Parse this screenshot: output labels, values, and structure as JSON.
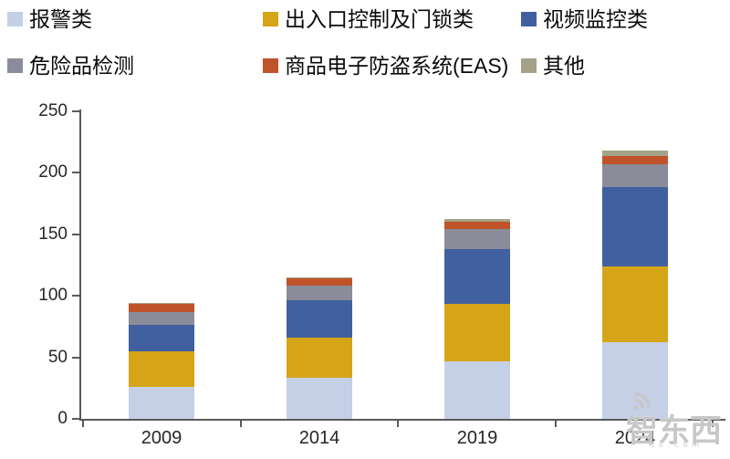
{
  "chart_data": {
    "type": "bar",
    "stacked": true,
    "title": "",
    "xlabel": "",
    "ylabel": "",
    "categories": [
      "2009",
      "2014",
      "2019",
      "2024"
    ],
    "series": [
      {
        "name": "报警类",
        "color": "#c5d0e6",
        "values": [
          26,
          33,
          47,
          62
        ]
      },
      {
        "name": "出入口控制及门锁类",
        "color": "#d6a517",
        "values": [
          29,
          33,
          46,
          62
        ]
      },
      {
        "name": "视频监控类",
        "color": "#41609f",
        "values": [
          21,
          30,
          45,
          64
        ]
      },
      {
        "name": "危险品检测",
        "color": "#8a8c99",
        "values": [
          11,
          12,
          16,
          19
        ]
      },
      {
        "name": "商品电子防盗系统(EAS)",
        "color": "#c0532a",
        "values": [
          6,
          6,
          6,
          6
        ]
      },
      {
        "name": "其他",
        "color": "#a4a287",
        "values": [
          1,
          1,
          2,
          5
        ]
      }
    ],
    "totals": [
      94,
      115,
      162,
      218
    ],
    "ylim": [
      0,
      250
    ],
    "y_ticks": [
      0,
      50,
      100,
      150,
      200,
      250
    ],
    "grid": false,
    "legend_position": "top"
  },
  "watermark": {
    "brand": "智东西",
    "domain_text": "dx.com"
  },
  "colors": {
    "axis": "#595959",
    "axis_text": "#262626",
    "watermark": "#c7c7c9"
  }
}
